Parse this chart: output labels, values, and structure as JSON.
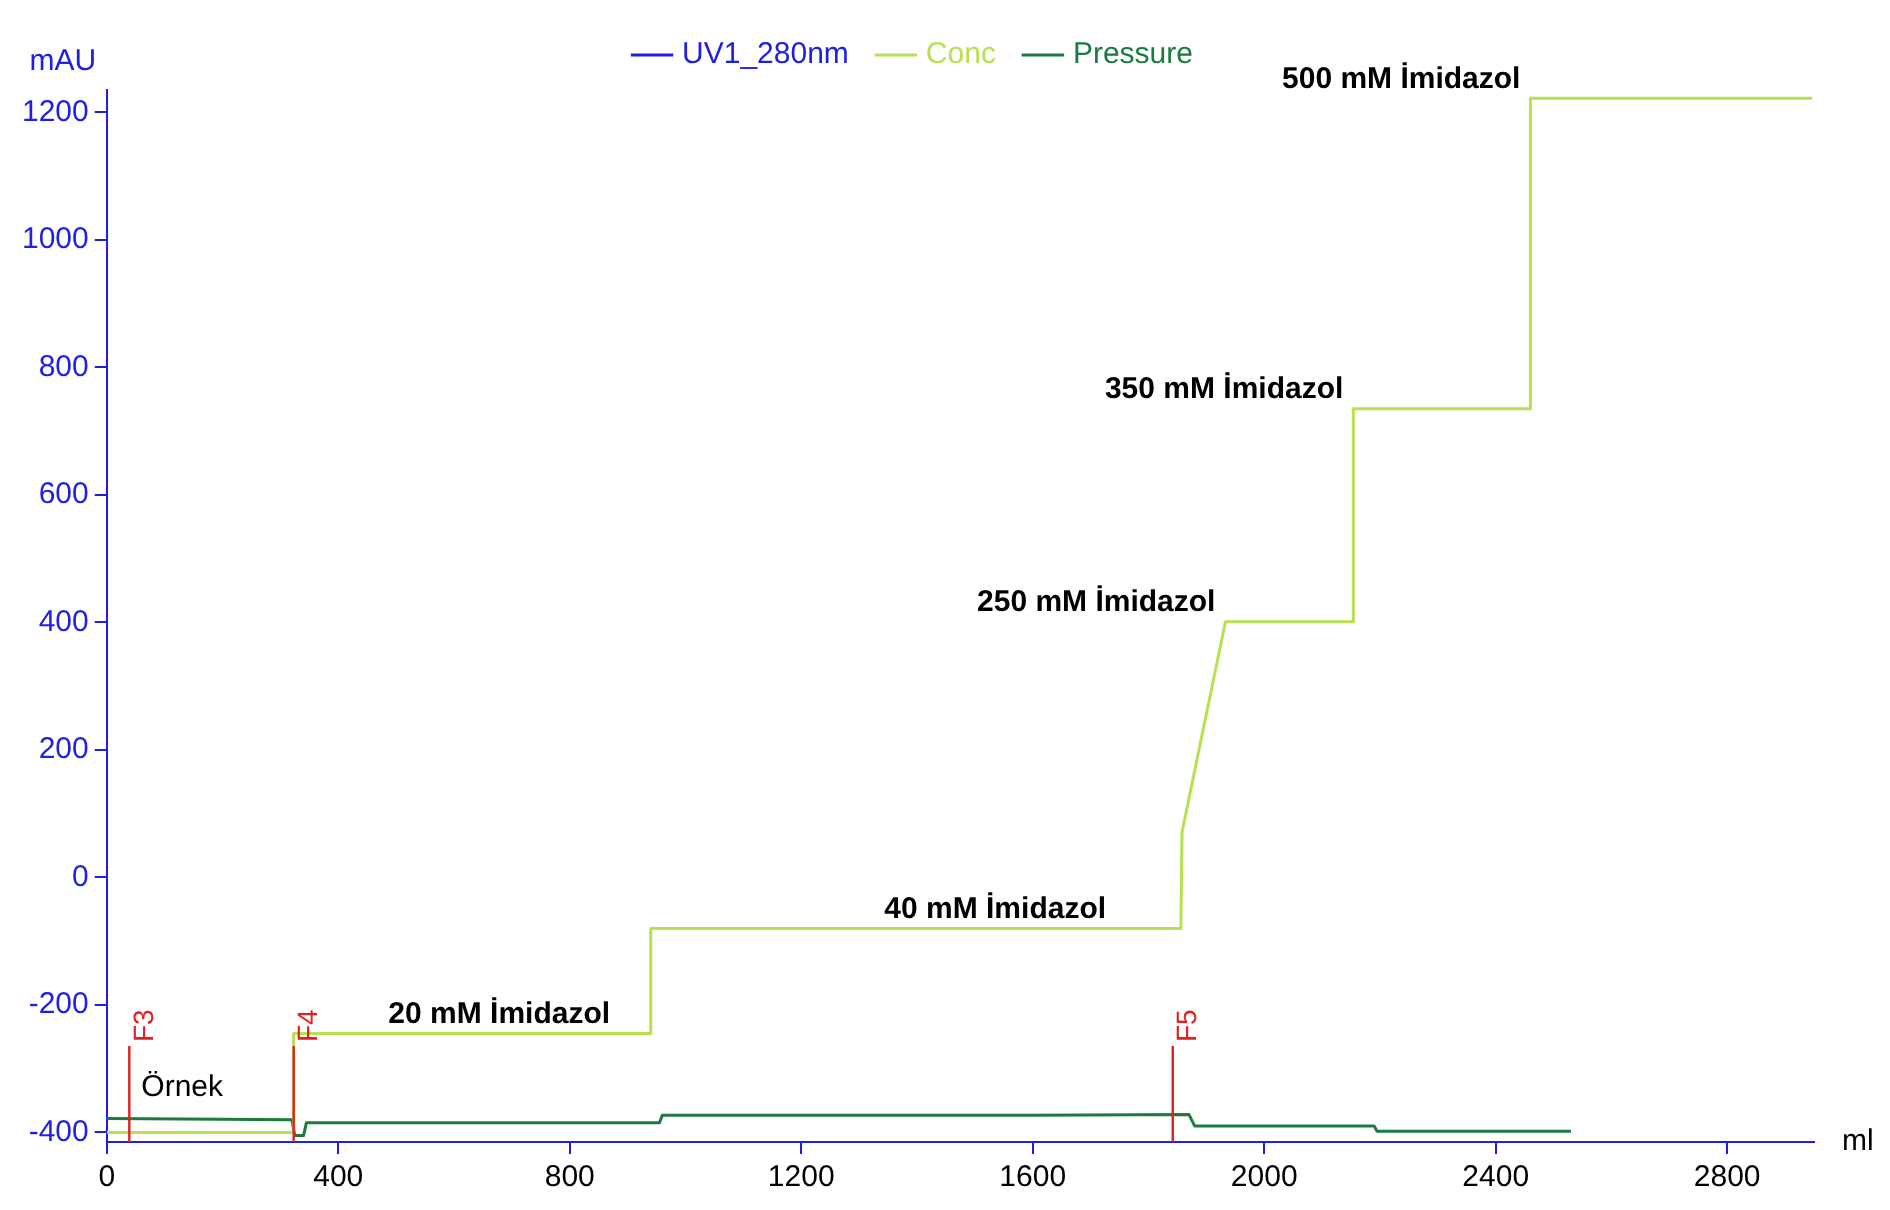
{
  "chart_data": {
    "type": "line",
    "xlabel": "ml",
    "ylabel": "mAU",
    "xlim": [
      0,
      2950
    ],
    "xticks": [
      0,
      400,
      800,
      1200,
      1600,
      2000,
      2400,
      2800
    ],
    "ylim": [
      -415,
      1235
    ],
    "yticks": [
      -400,
      -200,
      0,
      200,
      400,
      600,
      800,
      1000,
      1200
    ],
    "grid": false,
    "legend": "top",
    "marker": "none",
    "line_style": "solid",
    "series": [
      {
        "name": "UV1_280nm",
        "color": "#2020e0"
      },
      {
        "name": "Conc",
        "color": "#b8e050",
        "x": [
          0,
          323,
          323,
          940,
          940,
          1856,
          1858,
          1933,
          2154,
          2154,
          2460,
          2460,
          2947
        ],
        "values": [
          -400,
          -400,
          -245,
          -245,
          -80,
          -80,
          71,
          401,
          401,
          735,
          735,
          1222,
          1222
        ]
      },
      {
        "name": "Pressure",
        "color": "#1a7a40",
        "x": [
          0,
          320,
          325,
          340,
          345,
          955,
          960,
          1600,
          1870,
          1880,
          2190,
          2195,
          2530
        ],
        "values": [
          -378,
          -380,
          -405,
          -405,
          -385,
          -385,
          -373,
          -373,
          -372,
          -390,
          -390,
          -398,
          -398
        ]
      }
    ],
    "ref_lines": [
      {
        "axis": "x",
        "value": 39,
        "label": "F3",
        "color": "#e02020"
      },
      {
        "axis": "x",
        "value": 323,
        "label": "F4",
        "color": "#e02020"
      },
      {
        "axis": "x",
        "value": 1842,
        "label": "F5",
        "color": "#e02020"
      }
    ],
    "annotations": [
      {
        "text": "Örnek",
        "x": 39,
        "y": -330
      },
      {
        "text": "20 mM İmidazol",
        "x": 887,
        "y": -245
      },
      {
        "text": "40 mM İmidazol",
        "x": 1744,
        "y": -80
      },
      {
        "text": "250 mM İmidazol",
        "x": 1933,
        "y": 401
      },
      {
        "text": "350 mM İmidazol",
        "x": 2154,
        "y": 735
      },
      {
        "text": "500 mM İmidazol",
        "x": 2460,
        "y": 1222
      }
    ]
  }
}
